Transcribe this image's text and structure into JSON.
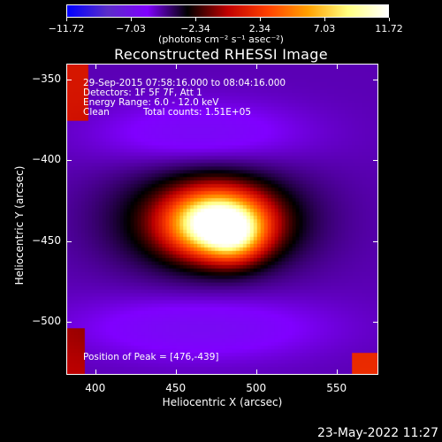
{
  "colorbar": {
    "ticks": [
      "−11.72",
      "−7.03",
      "−2.34",
      "2.34",
      "7.03",
      "11.72"
    ],
    "tick_values": [
      -11.72,
      -7.03,
      -2.34,
      2.34,
      7.03,
      11.72
    ],
    "range": [
      -11.72,
      11.72
    ],
    "units": "(photons cm⁻² s⁻¹ asec⁻²)",
    "colors": [
      "#0000ff",
      "#5a2dc8",
      "#8000ff",
      "#000000",
      "#c00000",
      "#ff4000",
      "#ffa000",
      "#ffff80",
      "#ffffff"
    ]
  },
  "title": "Reconstructed RHESSI Image",
  "annotations": {
    "line1": "29-Sep-2015 07:58:16.000 to 08:04:16.000",
    "line2": "Detectors: 1F 5F 7F, Att 1",
    "line3": "Energy Range: 6.0 - 12.0 keV",
    "line4_left": "Clean",
    "line4_right": "Total counts: 1.51E+05",
    "peak": "Position of Peak = [476,-439]"
  },
  "footer": "23-May-2022 11:27",
  "chart_data": {
    "type": "heatmap",
    "title": "Reconstructed RHESSI Image",
    "xlabel": "Heliocentric X (arcsec)",
    "ylabel": "Heliocentric Y (arcsec)",
    "xlim": [
      382,
      576
    ],
    "ylim": [
      -533,
      -340
    ],
    "x_ticks": [
      "400",
      "450",
      "500",
      "550"
    ],
    "x_tick_values": [
      400,
      450,
      500,
      550
    ],
    "y_ticks": [
      "−350",
      "−400",
      "−450",
      "−500"
    ],
    "y_tick_values": [
      -350,
      -400,
      -450,
      -500
    ],
    "zlim": [
      -11.72,
      11.72
    ],
    "peak": {
      "x": 476,
      "y": -439
    }
  }
}
